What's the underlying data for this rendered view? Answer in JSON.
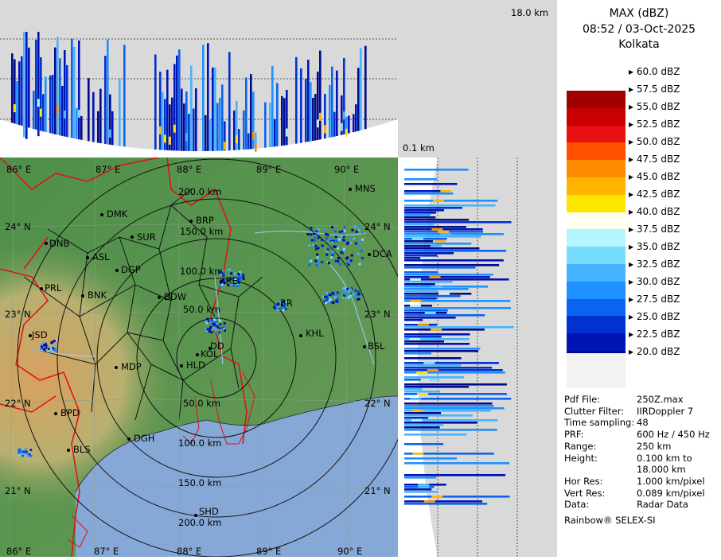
{
  "header": {
    "product": "MAX (dBZ)",
    "datetime": "08:52 / 03-Oct-2025",
    "station": "Kolkata"
  },
  "cross_section": {
    "top_height_label": "18.0 km",
    "bottom_height_label": "0.1 km"
  },
  "color_scale": {
    "levels": [
      {
        "label": "60.0 dBZ",
        "color": "#ffffff"
      },
      {
        "label": "57.5 dBZ",
        "color": "#a00000"
      },
      {
        "label": "55.0 dBZ",
        "color": "#c80000"
      },
      {
        "label": "52.5 dBZ",
        "color": "#e81010"
      },
      {
        "label": "50.0 dBZ",
        "color": "#ff5000"
      },
      {
        "label": "47.5 dBZ",
        "color": "#ff8c00"
      },
      {
        "label": "45.0 dBZ",
        "color": "#ffb400"
      },
      {
        "label": "42.5 dBZ",
        "color": "#ffe600"
      },
      {
        "label": "40.0 dBZ",
        "color": "#fffff0"
      },
      {
        "label": "37.5 dBZ",
        "color": "#b4f5ff"
      },
      {
        "label": "35.0 dBZ",
        "color": "#78dcff"
      },
      {
        "label": "32.5 dBZ",
        "color": "#46b4ff"
      },
      {
        "label": "30.0 dBZ",
        "color": "#1e90ff"
      },
      {
        "label": "27.5 dBZ",
        "color": "#0a64f0"
      },
      {
        "label": "25.0 dBZ",
        "color": "#0032d2"
      },
      {
        "label": "22.5 dBZ",
        "color": "#0014b4"
      },
      {
        "label": "20.0 dBZ",
        "color": "#000a8c"
      }
    ]
  },
  "info": [
    {
      "key": "Pdf File:",
      "value": "250Z.max"
    },
    {
      "key": "Clutter Filter:",
      "value": "IIRDoppler 7"
    },
    {
      "key": "Time sampling:",
      "value": "48"
    },
    {
      "key": "PRF:",
      "value": "600 Hz / 450 Hz"
    },
    {
      "key": "Range:",
      "value": "250 km"
    },
    {
      "key": "Height:",
      "value": "0.100 km to"
    },
    {
      "key": "",
      "value": "18.000 km"
    },
    {
      "key": "Hor Res:",
      "value": "1.000 km/pixel"
    },
    {
      "key": "Vert Res:",
      "value": "0.089 km/pixel"
    },
    {
      "key": "Data:",
      "value": "Radar Data"
    }
  ],
  "footer": "Rainbow® SELEX-SI",
  "map": {
    "lon_labels_top": [
      "86° E",
      "87° E",
      "88° E",
      "89° E",
      "90° E"
    ],
    "lon_labels_bottom": [
      "86° E",
      "87° E",
      "88° E",
      "89° E",
      "90° E"
    ],
    "lat_labels": [
      "24° N",
      "23° N",
      "22° N",
      "21° N"
    ],
    "lat_labels_right": [
      "24° N",
      "23° N",
      "22° N",
      "21° N"
    ],
    "range_rings": [
      "50.0 km",
      "100.0 km",
      "150.0 km",
      "200.0 km"
    ],
    "range_rings_south": [
      "50.0 km",
      "100.0 km",
      "150.0 km",
      "200.0 km"
    ],
    "cities": [
      "MNS",
      "BRP",
      "DMK",
      "SUR",
      "DNB",
      "ASL",
      "DGP",
      "PRL",
      "BNK",
      "BDW",
      "JSD",
      "MDP",
      "KOL",
      "DD",
      "HLD",
      "DGH",
      "BLS",
      "BPD",
      "KHL",
      "BSL",
      "DCA",
      "SHD",
      "BR",
      "KRE"
    ]
  }
}
